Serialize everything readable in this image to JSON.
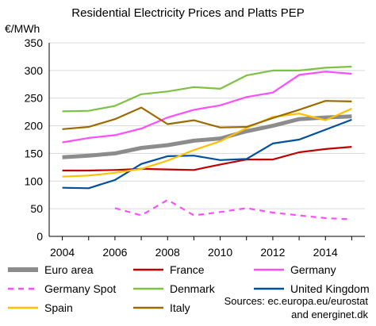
{
  "chart_data": {
    "type": "line",
    "title": "Residential Electricity Prices and Platts PEP",
    "ylabel": "€/MWh",
    "xlabel": "",
    "xlim": [
      2003.5,
      2015.5
    ],
    "ylim": [
      0,
      350
    ],
    "x_ticks": [
      "2004",
      "2006",
      "2008",
      "2010",
      "2012",
      "2014"
    ],
    "y_ticks": [
      "0",
      "50",
      "100",
      "150",
      "200",
      "250",
      "300",
      "350"
    ],
    "grid": "horizontal",
    "legend_position": "bottom",
    "series": [
      {
        "name": "Euro area",
        "color": "#8c8c8c",
        "style": "thick",
        "x": [
          2004,
          2005,
          2006,
          2007,
          2008,
          2009,
          2010,
          2011,
          2012,
          2013,
          2014,
          2015
        ],
        "y": [
          143,
          146,
          150,
          160,
          165,
          173,
          177,
          190,
          200,
          212,
          215,
          217
        ]
      },
      {
        "name": "France",
        "color": "#c00000",
        "style": "solid",
        "x": [
          2004,
          2005,
          2006,
          2007,
          2008,
          2009,
          2010,
          2011,
          2012,
          2013,
          2014,
          2015
        ],
        "y": [
          119,
          119,
          120,
          122,
          121,
          120,
          130,
          139,
          139,
          152,
          158,
          162
        ]
      },
      {
        "name": "Germany",
        "color": "#ff4dff",
        "style": "solid",
        "x": [
          2004,
          2005,
          2006,
          2007,
          2008,
          2009,
          2010,
          2011,
          2012,
          2013,
          2014,
          2015
        ],
        "y": [
          170,
          178,
          183,
          195,
          215,
          229,
          237,
          252,
          260,
          292,
          298,
          294
        ]
      },
      {
        "name": "Germany Spot",
        "color": "#ff4dff",
        "style": "dashed",
        "x": [
          2006,
          2007,
          2008,
          2009,
          2010,
          2011,
          2012,
          2013,
          2014,
          2015
        ],
        "y": [
          51,
          38,
          66,
          38,
          44,
          51,
          43,
          38,
          33,
          31
        ]
      },
      {
        "name": "Denmark",
        "color": "#7dc242",
        "style": "solid",
        "x": [
          2004,
          2005,
          2006,
          2007,
          2008,
          2009,
          2010,
          2011,
          2012,
          2013,
          2014,
          2015
        ],
        "y": [
          226,
          227,
          236,
          257,
          262,
          270,
          267,
          291,
          300,
          300,
          305,
          307
        ]
      },
      {
        "name": "United Kingdom",
        "color": "#0050a0",
        "style": "solid",
        "x": [
          2004,
          2005,
          2006,
          2007,
          2008,
          2009,
          2010,
          2011,
          2012,
          2013,
          2014,
          2015
        ],
        "y": [
          88,
          87,
          102,
          131,
          145,
          146,
          138,
          140,
          168,
          175,
          193,
          211
        ]
      },
      {
        "name": "Spain",
        "color": "#ffc000",
        "style": "solid",
        "x": [
          2004,
          2005,
          2006,
          2007,
          2008,
          2009,
          2010,
          2011,
          2012,
          2013,
          2014,
          2015
        ],
        "y": [
          108,
          110,
          115,
          122,
          137,
          156,
          172,
          196,
          216,
          222,
          210,
          231
        ]
      },
      {
        "name": "Italy",
        "color": "#9c6b00",
        "style": "solid",
        "x": [
          2004,
          2005,
          2006,
          2007,
          2008,
          2009,
          2010,
          2011,
          2012,
          2013,
          2014,
          2015
        ],
        "y": [
          194,
          198,
          212,
          233,
          203,
          210,
          197,
          198,
          214,
          229,
          245,
          244
        ]
      }
    ],
    "source": [
      "Sources: ec.europa.eu/eurostat",
      "and energinet.dk"
    ]
  }
}
